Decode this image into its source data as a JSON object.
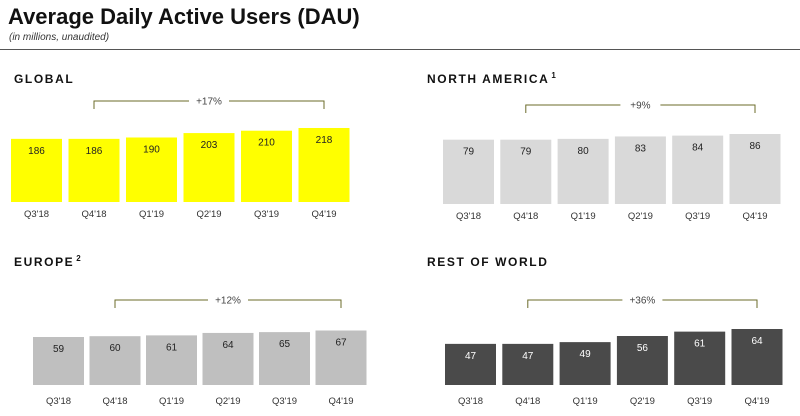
{
  "header": {
    "title": "Average Daily Active Users (DAU)",
    "subtitle": "(in millions, unaudited)"
  },
  "colors": {
    "global": "#ffff00",
    "north_america": "#d9d9d9",
    "europe": "#bfbfbf",
    "rest_of_world": "#4a4a4a",
    "bracket": "#6b6b2a"
  },
  "chart_data": [
    {
      "type": "bar",
      "id": "global",
      "title": "GLOBAL",
      "title_sup": "",
      "categories": [
        "Q3'18",
        "Q4'18",
        "Q1'19",
        "Q2'19",
        "Q3'19",
        "Q4'19"
      ],
      "values": [
        186,
        186,
        190,
        203,
        210,
        218
      ],
      "growth": {
        "label": "+17%",
        "from": "Q4'18",
        "to": "Q4'19"
      },
      "bar_color": "#ffff00",
      "label_color": "#222222"
    },
    {
      "type": "bar",
      "id": "north_america",
      "title": "NORTH AMERICA",
      "title_sup": "1",
      "categories": [
        "Q3'18",
        "Q4'18",
        "Q1'19",
        "Q2'19",
        "Q3'19",
        "Q4'19"
      ],
      "values": [
        79,
        79,
        80,
        83,
        84,
        86
      ],
      "growth": {
        "label": "+9%",
        "from": "Q4'18",
        "to": "Q4'19"
      },
      "bar_color": "#d9d9d9",
      "label_color": "#222222"
    },
    {
      "type": "bar",
      "id": "europe",
      "title": "EUROPE",
      "title_sup": "2",
      "categories": [
        "Q3'18",
        "Q4'18",
        "Q1'19",
        "Q2'19",
        "Q3'19",
        "Q4'19"
      ],
      "values": [
        59,
        60,
        61,
        64,
        65,
        67
      ],
      "growth": {
        "label": "+12%",
        "from": "Q4'18",
        "to": "Q4'19"
      },
      "bar_color": "#bfbfbf",
      "label_color": "#222222"
    },
    {
      "type": "bar",
      "id": "rest_of_world",
      "title": "REST OF WORLD",
      "title_sup": "",
      "categories": [
        "Q3'18",
        "Q4'18",
        "Q1'19",
        "Q2'19",
        "Q3'19",
        "Q4'19"
      ],
      "values": [
        47,
        47,
        49,
        56,
        61,
        64
      ],
      "growth": {
        "label": "+36%",
        "from": "Q4'18",
        "to": "Q4'19"
      },
      "bar_color": "#4a4a4a",
      "label_color": "#ffffff"
    }
  ]
}
